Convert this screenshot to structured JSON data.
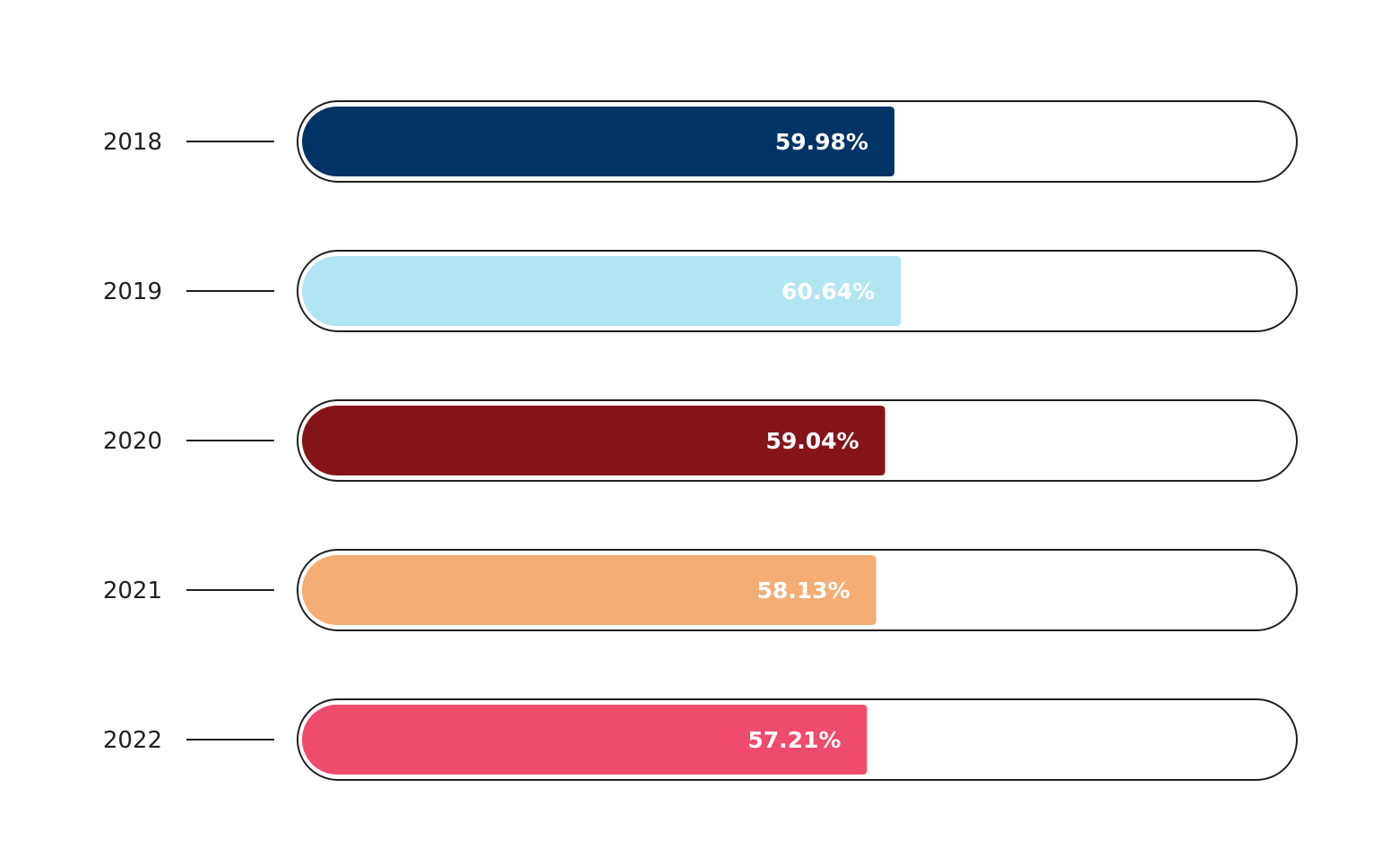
{
  "chart_data": {
    "type": "bar",
    "orientation": "horizontal",
    "categories": [
      "2018",
      "2019",
      "2020",
      "2021",
      "2022"
    ],
    "values": [
      59.98,
      60.64,
      59.04,
      58.13,
      57.21
    ],
    "value_labels": [
      "59.98%",
      "60.64%",
      "59.04%",
      "58.13%",
      "57.21%"
    ],
    "colors": [
      "#003366",
      "#b2e5f2",
      "#85141a",
      "#f4ad75",
      "#ef4b6c"
    ],
    "unit": "%",
    "xlim": [
      0,
      100
    ],
    "grid": false,
    "legend": "none"
  }
}
